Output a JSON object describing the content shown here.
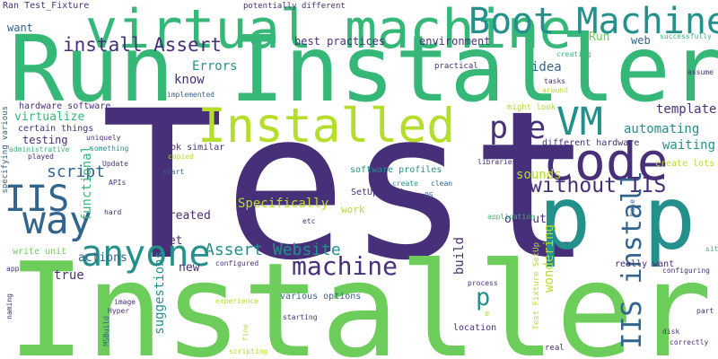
{
  "palette": {
    "purple": "#482f79",
    "indigo": "#3b4f8a",
    "blue": "#32648e",
    "teal": "#23908c",
    "green": "#35b778",
    "lightgreen": "#6ccd5a",
    "lime": "#b5dd2b"
  },
  "words": [
    {
      "text": "Test",
      "color": "purple"
    },
    {
      "text": "Installer",
      "color": "lightgreen"
    },
    {
      "text": "Run Installer",
      "color": "green"
    },
    {
      "text": "virtual machine",
      "color": "green"
    },
    {
      "text": "Boot Machine",
      "color": "teal"
    },
    {
      "text": "Installed",
      "color": "lime"
    },
    {
      "text": "code",
      "color": "purple"
    },
    {
      "text": "p p",
      "color": "teal"
    },
    {
      "text": "VM",
      "color": "teal"
    },
    {
      "text": "pre",
      "color": "purple"
    },
    {
      "text": "IIS",
      "color": "blue"
    },
    {
      "text": "way",
      "color": "blue"
    },
    {
      "text": "anyone",
      "color": "teal"
    },
    {
      "text": "machine",
      "color": "purple"
    },
    {
      "text": "IIS install",
      "color": "blue"
    },
    {
      "text": "install Assert",
      "color": "purple"
    },
    {
      "text": "without IIS",
      "color": "purple"
    },
    {
      "text": "Assert Website",
      "color": "teal"
    },
    {
      "text": "script",
      "color": "blue"
    },
    {
      "text": "Specifically",
      "color": "lime"
    },
    {
      "text": "p",
      "color": "teal"
    },
    {
      "text": "wondering",
      "color": "lime"
    },
    {
      "text": "build",
      "color": "purple"
    },
    {
      "text": "suggestions",
      "color": "teal"
    },
    {
      "text": "functional",
      "color": "green"
    },
    {
      "text": "automating",
      "color": "teal"
    },
    {
      "text": "waiting",
      "color": "teal"
    },
    {
      "text": "template",
      "color": "purple"
    },
    {
      "text": "sounds",
      "color": "lime"
    },
    {
      "text": "output",
      "color": "purple"
    },
    {
      "text": "created",
      "color": "purple"
    },
    {
      "text": "set",
      "color": "purple"
    },
    {
      "text": "new",
      "color": "purple"
    },
    {
      "text": "true",
      "color": "purple"
    },
    {
      "text": "actions",
      "color": "blue"
    },
    {
      "text": "know",
      "color": "purple"
    },
    {
      "text": "Errors",
      "color": "teal"
    },
    {
      "text": "idea",
      "color": "blue"
    },
    {
      "text": "Run",
      "color": "lightgreen"
    },
    {
      "text": "web",
      "color": "blue"
    },
    {
      "text": "virtualize",
      "color": "green"
    },
    {
      "text": "testing",
      "color": "purple"
    },
    {
      "text": "environment",
      "color": "purple"
    },
    {
      "text": "best practices",
      "color": "purple"
    },
    {
      "text": "work",
      "color": "lime"
    },
    {
      "text": "location",
      "color": "purple"
    },
    {
      "text": "want",
      "color": "blue"
    },
    {
      "text": "really want",
      "color": "purple"
    },
    {
      "text": "create lots",
      "color": "lime"
    },
    {
      "text": "different hardware",
      "color": "purple"
    },
    {
      "text": "look similar",
      "color": "purple"
    },
    {
      "text": "software profiles",
      "color": "teal"
    },
    {
      "text": "various options",
      "color": "blue"
    },
    {
      "text": "write unit",
      "color": "lightgreen"
    },
    {
      "text": "certain things",
      "color": "purple"
    },
    {
      "text": "hardware software",
      "color": "purple"
    },
    {
      "text": "specifying various",
      "color": "blue"
    },
    {
      "text": "Ran Test_Fixture",
      "color": "purple"
    },
    {
      "text": "potentially different",
      "color": "purple"
    },
    {
      "text": "SetUp Boot",
      "color": "purple"
    },
    {
      "text": "Test Fixture SetUp",
      "color": "lime"
    },
    {
      "text": "might look",
      "color": "lime"
    },
    {
      "text": "practical",
      "color": "purple"
    },
    {
      "text": "tasks",
      "color": "purple"
    },
    {
      "text": "around",
      "color": "lime"
    },
    {
      "text": "creating",
      "color": "green"
    },
    {
      "text": "successfully",
      "color": "green"
    },
    {
      "text": "assume",
      "color": "purple"
    },
    {
      "text": "implemented",
      "color": "blue"
    },
    {
      "text": "uniquely",
      "color": "purple"
    },
    {
      "text": "something",
      "color": "teal"
    },
    {
      "text": "administrative",
      "color": "green"
    },
    {
      "text": "played",
      "color": "purple"
    },
    {
      "text": "Update",
      "color": "purple"
    },
    {
      "text": "copied",
      "color": "lime"
    },
    {
      "text": "start",
      "color": "blue"
    },
    {
      "text": "APIs",
      "color": "purple"
    },
    {
      "text": "hard",
      "color": "purple"
    },
    {
      "text": "libraries",
      "color": "purple"
    },
    {
      "text": "create",
      "color": "teal"
    },
    {
      "text": "clean",
      "color": "blue"
    },
    {
      "text": "OS",
      "color": "blue"
    },
    {
      "text": "application",
      "color": "green"
    },
    {
      "text": "base",
      "color": "blue"
    },
    {
      "text": "site",
      "color": "green"
    },
    {
      "text": "etc",
      "color": "purple"
    },
    {
      "text": "configured",
      "color": "purple"
    },
    {
      "text": "app",
      "color": "purple"
    },
    {
      "text": "configuring",
      "color": "purple"
    },
    {
      "text": "process",
      "color": "purple"
    },
    {
      "text": "image",
      "color": "purple"
    },
    {
      "text": "Hyper",
      "color": "purple"
    },
    {
      "text": "naming",
      "color": "purple"
    },
    {
      "text": "experience",
      "color": "lime"
    },
    {
      "text": "MSBuild",
      "color": "blue"
    },
    {
      "text": "starting",
      "color": "purple"
    },
    {
      "text": "fine",
      "color": "lime"
    },
    {
      "text": "scripting",
      "color": "lime"
    },
    {
      "text": "part",
      "color": "purple"
    },
    {
      "text": "disk",
      "color": "purple"
    },
    {
      "text": "correctly",
      "color": "purple"
    },
    {
      "text": "real",
      "color": "purple"
    },
    {
      "text": "e",
      "color": "lime"
    }
  ]
}
